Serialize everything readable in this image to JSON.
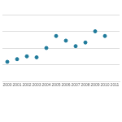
{
  "chart_data": {
    "type": "scatter",
    "x": [
      2000,
      2001,
      2002,
      2003,
      2004,
      2005,
      2006,
      2007,
      2008,
      2009,
      2010
    ],
    "values": [
      1.17,
      1.33,
      1.5,
      1.44,
      2.0,
      2.72,
      2.44,
      2.11,
      2.33,
      3.0,
      2.72
    ],
    "color": "#1f7a9a",
    "xlim": [
      1999.5,
      2011.5
    ],
    "xticks": [
      2000,
      2001,
      2002,
      2003,
      2004,
      2005,
      2006,
      2007,
      2008,
      2009,
      2010,
      2011
    ],
    "ylim": [
      0,
      4
    ],
    "yticks": [
      0,
      1,
      2,
      3,
      4
    ],
    "grid": true,
    "tick_labels": "x",
    "marker": "circle"
  }
}
